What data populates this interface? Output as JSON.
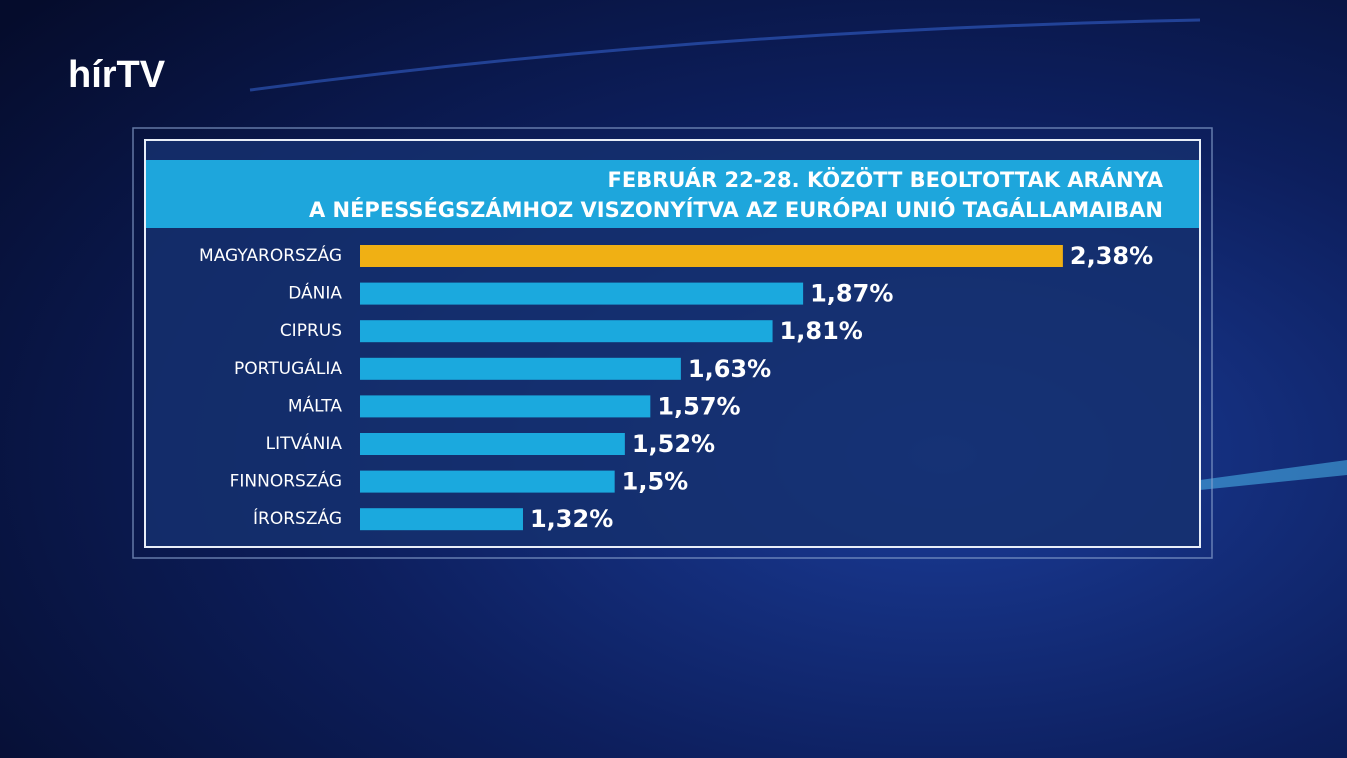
{
  "logo": "hírTV",
  "chart_data": {
    "type": "hbar",
    "title": [
      "FEBRUÁR 22-28. KÖZÖTT BEOLTOTTAK ARÁNYA",
      "A NÉPESSÉGSZÁMHOZ VISZONYÍTVA AZ EURÓPAI UNIÓ TAGÁLLAMAIBAN"
    ],
    "categories": [
      "MAGYARORSZÁG",
      "DÁNIA",
      "CIPRUS",
      "PORTUGÁLIA",
      "MÁLTA",
      "LITVÁNIA",
      "FINNORSZÁG",
      "ÍRORSZÁG"
    ],
    "values": [
      2.38,
      1.87,
      1.81,
      1.63,
      1.57,
      1.52,
      1.5,
      1.32
    ],
    "value_labels": [
      "2,38%",
      "1,87%",
      "1,81%",
      "1,63%",
      "1,57%",
      "1,52%",
      "1,5%",
      "1,32%"
    ],
    "colors": [
      "#f0b014",
      "#1ba9de",
      "#1ba9de",
      "#1ba9de",
      "#1ba9de",
      "#1ba9de",
      "#1ba9de",
      "#1ba9de"
    ],
    "xlim": [
      1,
      2.5
    ]
  }
}
